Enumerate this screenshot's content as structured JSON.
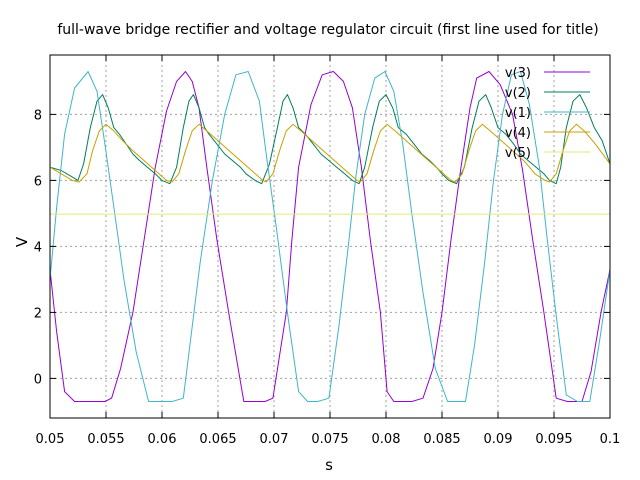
{
  "chart_data": {
    "type": "line",
    "title": "full-wave bridge rectifier and voltage regulator circuit (first line used for title)",
    "xlabel": "s",
    "ylabel": "V",
    "xlim": [
      0.05,
      0.1
    ],
    "ylim": [
      -1.2,
      9.8
    ],
    "xticks": [
      0.05,
      0.055,
      0.06,
      0.065,
      0.07,
      0.075,
      0.08,
      0.085,
      0.09,
      0.095,
      0.1
    ],
    "xtick_labels": [
      "0.05",
      "0.055",
      "0.06",
      "0.065",
      "0.07",
      "0.075",
      "0.08",
      "0.085",
      "0.09",
      "0.095",
      "0.1"
    ],
    "yticks": [
      0,
      2,
      4,
      6,
      8
    ],
    "ytick_labels": [
      "0",
      "2",
      "4",
      "6",
      "8"
    ],
    "grid": true,
    "legend_position": "top-right",
    "series": [
      {
        "name": "v(3)",
        "color": "#9400d3",
        "x": [
          0.05,
          0.0506,
          0.0513,
          0.0522,
          0.0534,
          0.0549,
          0.0555,
          0.0563,
          0.0574,
          0.0584,
          0.0594,
          0.0604,
          0.0613,
          0.0621,
          0.0627,
          0.0633,
          0.064,
          0.0649,
          0.066,
          0.0673,
          0.0682,
          0.0692,
          0.0699,
          0.0711,
          0.0716,
          0.0722,
          0.0733,
          0.0743,
          0.0753,
          0.0762,
          0.077,
          0.0778,
          0.0786,
          0.0795,
          0.0801,
          0.0807,
          0.0815,
          0.0823,
          0.0833,
          0.0842,
          0.085,
          0.0858,
          0.0867,
          0.0875,
          0.0881,
          0.0892,
          0.0902,
          0.0913,
          0.0922,
          0.0931,
          0.0941,
          0.0952,
          0.0962,
          0.0968,
          0.0975,
          0.0983,
          0.0992,
          0.1
        ],
        "y": [
          3.3,
          1.4,
          -0.4,
          -0.7,
          -0.7,
          -0.7,
          -0.6,
          0.3,
          2.0,
          4.2,
          6.4,
          8.1,
          9.0,
          9.3,
          9.0,
          8.2,
          6.4,
          4.2,
          1.9,
          -0.7,
          -0.7,
          -0.7,
          -0.6,
          2.0,
          4.2,
          6.4,
          8.3,
          9.2,
          9.3,
          9.0,
          8.2,
          6.4,
          4.2,
          2.0,
          -0.4,
          -0.7,
          -0.7,
          -0.7,
          -0.6,
          0.3,
          2.0,
          4.2,
          6.4,
          8.2,
          9.1,
          9.3,
          8.9,
          8.0,
          6.3,
          4.2,
          2.0,
          -0.6,
          -0.7,
          -0.7,
          -0.7,
          0.2,
          2.0,
          3.3
        ]
      },
      {
        "name": "v(2)",
        "color": "#007e5a",
        "x": [
          0.05,
          0.051,
          0.052,
          0.0525,
          0.053,
          0.0536,
          0.0542,
          0.0547,
          0.0552,
          0.0557,
          0.0562,
          0.0568,
          0.0574,
          0.058,
          0.0587,
          0.0594,
          0.06,
          0.0607,
          0.0613,
          0.0619,
          0.0624,
          0.0628,
          0.0633,
          0.0638,
          0.0642,
          0.0649,
          0.0656,
          0.0663,
          0.067,
          0.0675,
          0.0683,
          0.0689,
          0.0696,
          0.0703,
          0.0708,
          0.0712,
          0.0717,
          0.0722,
          0.0728,
          0.0735,
          0.0742,
          0.0749,
          0.0756,
          0.0763,
          0.077,
          0.0776,
          0.0781,
          0.0788,
          0.0794,
          0.08,
          0.0806,
          0.0811,
          0.0818,
          0.0825,
          0.0832,
          0.0839,
          0.0845,
          0.085,
          0.0856,
          0.0863,
          0.087,
          0.0877,
          0.0883,
          0.0889,
          0.0894,
          0.09,
          0.0907,
          0.0914,
          0.092,
          0.0927,
          0.0934,
          0.0941,
          0.0946,
          0.0952,
          0.0956,
          0.0961,
          0.0967,
          0.0973,
          0.0979,
          0.0986,
          0.0993,
          0.1
        ],
        "y": [
          6.4,
          6.3,
          6.1,
          6.0,
          6.5,
          7.6,
          8.4,
          8.6,
          8.2,
          7.6,
          7.4,
          7.1,
          6.8,
          6.6,
          6.4,
          6.2,
          6.0,
          5.9,
          6.4,
          7.6,
          8.4,
          8.6,
          8.2,
          7.6,
          7.4,
          7.1,
          6.8,
          6.6,
          6.4,
          6.2,
          6.0,
          5.9,
          6.5,
          7.6,
          8.4,
          8.6,
          8.2,
          7.6,
          7.4,
          7.1,
          6.8,
          6.6,
          6.4,
          6.2,
          6.0,
          5.9,
          6.4,
          7.6,
          8.4,
          8.6,
          8.2,
          7.6,
          7.4,
          7.1,
          6.8,
          6.6,
          6.4,
          6.2,
          6.0,
          5.9,
          6.4,
          7.6,
          8.4,
          8.6,
          8.2,
          7.6,
          7.4,
          7.1,
          6.8,
          6.6,
          6.4,
          6.2,
          6.0,
          5.9,
          6.4,
          7.6,
          8.4,
          8.6,
          8.2,
          7.6,
          7.2,
          6.5
        ]
      },
      {
        "name": "v(1)",
        "color": "#40b4c8",
        "x": [
          0.05,
          0.0506,
          0.0513,
          0.0522,
          0.0534,
          0.0542,
          0.0549,
          0.0557,
          0.0566,
          0.0577,
          0.0588,
          0.0599,
          0.0609,
          0.0619,
          0.0626,
          0.0634,
          0.0645,
          0.0656,
          0.0666,
          0.0677,
          0.0687,
          0.0693,
          0.0702,
          0.0712,
          0.0722,
          0.073,
          0.0739,
          0.0749,
          0.0758,
          0.0766,
          0.0773,
          0.0781,
          0.079,
          0.0799,
          0.0807,
          0.0815,
          0.0823,
          0.0833,
          0.0844,
          0.0855,
          0.0863,
          0.0871,
          0.0879,
          0.0888,
          0.0896,
          0.0904,
          0.0912,
          0.092,
          0.0928,
          0.0937,
          0.0944,
          0.0952,
          0.0961,
          0.0971,
          0.0982,
          0.0991,
          0.1
        ],
        "y": [
          3.0,
          5.2,
          7.4,
          8.8,
          9.3,
          8.7,
          7.1,
          5.2,
          3.0,
          0.8,
          -0.7,
          -0.7,
          -0.7,
          -0.6,
          1.3,
          3.5,
          6.0,
          8.0,
          9.2,
          9.3,
          8.4,
          6.8,
          4.6,
          2.0,
          -0.4,
          -0.7,
          -0.7,
          -0.6,
          1.6,
          3.9,
          6.1,
          8.0,
          9.1,
          9.3,
          8.7,
          7.1,
          5.0,
          2.6,
          0.3,
          -0.7,
          -0.7,
          -0.7,
          1.0,
          3.5,
          6.0,
          8.0,
          9.2,
          9.3,
          8.3,
          6.4,
          4.2,
          1.9,
          -0.5,
          -0.7,
          -0.7,
          1.2,
          3.3
        ]
      },
      {
        "name": "v(4)",
        "color": "#c8a000",
        "x": [
          0.05,
          0.051,
          0.052,
          0.0526,
          0.0533,
          0.0538,
          0.0544,
          0.055,
          0.0557,
          0.0565,
          0.0574,
          0.0584,
          0.0594,
          0.0604,
          0.0609,
          0.0615,
          0.0621,
          0.0627,
          0.0633,
          0.064,
          0.065,
          0.066,
          0.067,
          0.068,
          0.069,
          0.0693,
          0.0699,
          0.0705,
          0.0711,
          0.0717,
          0.0724,
          0.0734,
          0.0744,
          0.0754,
          0.0764,
          0.0774,
          0.0777,
          0.0783,
          0.0789,
          0.0795,
          0.0801,
          0.0808,
          0.0818,
          0.0828,
          0.0838,
          0.0848,
          0.0858,
          0.0862,
          0.0868,
          0.0874,
          0.088,
          0.0886,
          0.0893,
          0.0903,
          0.0913,
          0.0923,
          0.0933,
          0.0942,
          0.0946,
          0.0952,
          0.0958,
          0.0964,
          0.097,
          0.0977,
          0.0987,
          0.1
        ],
        "y": [
          6.4,
          6.2,
          6.0,
          5.95,
          6.2,
          6.9,
          7.5,
          7.7,
          7.5,
          7.2,
          6.9,
          6.6,
          6.3,
          6.0,
          5.95,
          6.2,
          6.9,
          7.5,
          7.7,
          7.5,
          7.2,
          6.9,
          6.6,
          6.3,
          6.0,
          5.95,
          6.2,
          6.9,
          7.5,
          7.7,
          7.5,
          7.2,
          6.9,
          6.6,
          6.3,
          6.0,
          5.95,
          6.2,
          6.9,
          7.5,
          7.7,
          7.5,
          7.2,
          6.9,
          6.6,
          6.3,
          6.0,
          5.95,
          6.2,
          6.9,
          7.5,
          7.7,
          7.5,
          7.2,
          6.9,
          6.6,
          6.2,
          6.0,
          5.95,
          6.2,
          6.9,
          7.5,
          7.7,
          7.5,
          7.1,
          6.5
        ]
      },
      {
        "name": "v(5)",
        "color": "#e6e678",
        "x": [
          0.05,
          0.1
        ],
        "y": [
          4.98,
          4.98
        ]
      }
    ]
  }
}
